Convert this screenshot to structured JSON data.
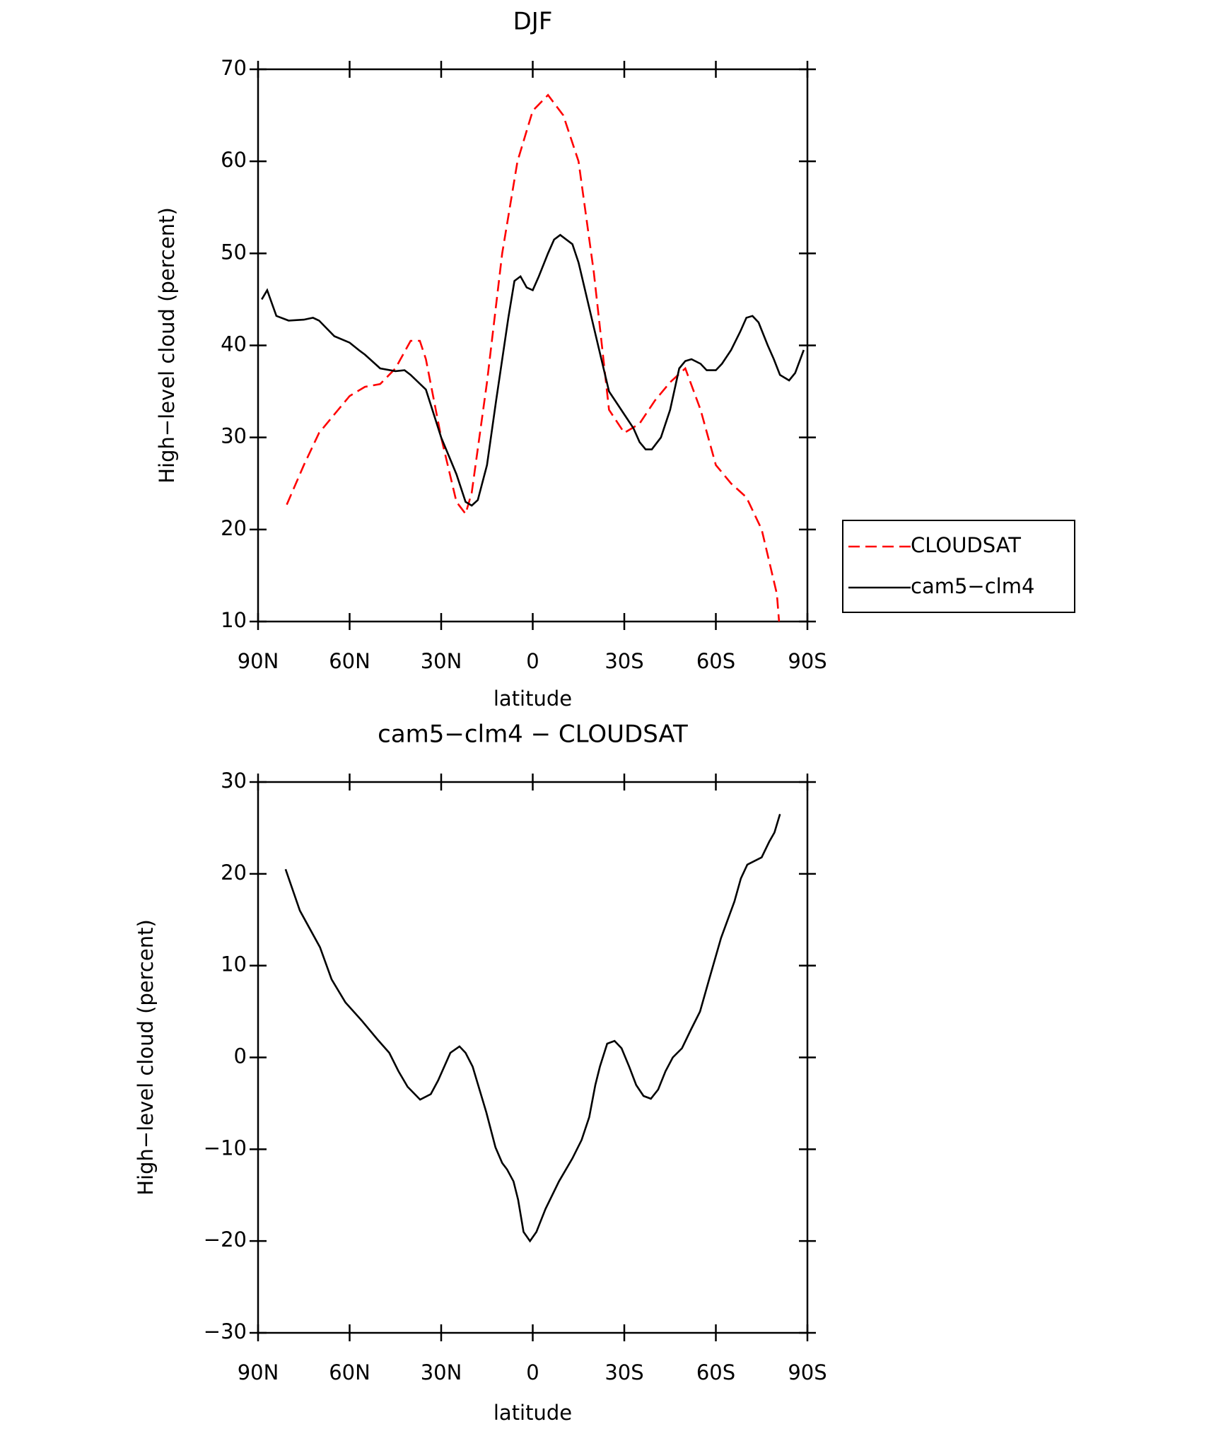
{
  "chart_data": [
    {
      "type": "line",
      "title": "DJF",
      "xlabel": "latitude",
      "ylabel": "High−level cloud (percent)",
      "xlim": [
        90,
        -90
      ],
      "xticks": [
        {
          "value": 90,
          "label": "90N"
        },
        {
          "value": 60,
          "label": "60N"
        },
        {
          "value": 30,
          "label": "30N"
        },
        0,
        {
          "value": -30,
          "label": "30S"
        },
        {
          "value": -60,
          "label": "60S"
        },
        {
          "value": -90,
          "label": "90S"
        }
      ],
      "ylim": [
        10,
        70
      ],
      "yticks": [
        10,
        20,
        30,
        40,
        50,
        60,
        70
      ],
      "legend": "right",
      "series": [
        {
          "name": "CLOUDSAT",
          "color": "#ff0000",
          "line_style": "dashed",
          "x": [
            80.6,
            75,
            70,
            65,
            60,
            55,
            50,
            45,
            40,
            37,
            35,
            30,
            25,
            22,
            20,
            15,
            10,
            5,
            0,
            -5,
            -10,
            -15,
            -20,
            -25,
            -30,
            -35,
            -40,
            -45,
            -50,
            -55,
            -60,
            -65,
            -70,
            -75,
            -80,
            -80.7
          ],
          "values": [
            22.7,
            27,
            30.5,
            32.5,
            34.5,
            35.5,
            35.8,
            37.5,
            40.5,
            40.5,
            38.5,
            30,
            23,
            21.7,
            24,
            36,
            50,
            60,
            65.5,
            67.2,
            65,
            60,
            48,
            33,
            30.5,
            31.5,
            34,
            36,
            37.5,
            33,
            27,
            25,
            23.5,
            20,
            13,
            10
          ]
        },
        {
          "name": "cam5−clm4",
          "color": "#000000",
          "line_style": "solid",
          "x": [
            88.8,
            87,
            84,
            80,
            75,
            72,
            70,
            65,
            60,
            57,
            55,
            50,
            45,
            42,
            40,
            35,
            30,
            25,
            22,
            20,
            18,
            15,
            12,
            8,
            6,
            4,
            2,
            0,
            -2,
            -5,
            -7,
            -9,
            -11,
            -13,
            -15,
            -20,
            -25,
            -28,
            -30,
            -33,
            -35,
            -37,
            -39,
            -42,
            -45,
            -48,
            -50,
            -52,
            -55,
            -57,
            -60,
            -62,
            -65,
            -68,
            -70,
            -72,
            -74,
            -77,
            -79,
            -81,
            -84,
            -86,
            -88.8
          ],
          "values": [
            45,
            46,
            43.2,
            42.7,
            42.8,
            43,
            42.7,
            41,
            40.3,
            39.5,
            39,
            37.5,
            37.2,
            37.3,
            36.8,
            35.2,
            30,
            26,
            23,
            22.6,
            23.2,
            27,
            34,
            43,
            47,
            47.5,
            46.3,
            46,
            47.5,
            50,
            51.5,
            52,
            51.5,
            51,
            49,
            42,
            35,
            33.5,
            32.5,
            31,
            29.5,
            28.7,
            28.7,
            30,
            33,
            37.5,
            38.3,
            38.5,
            38,
            37.3,
            37.3,
            38,
            39.5,
            41.5,
            43,
            43.2,
            42.5,
            40,
            38.5,
            36.8,
            36.2,
            37,
            39.5
          ]
        }
      ]
    },
    {
      "type": "line",
      "title": "cam5−clm4 − CLOUDSAT",
      "xlabel": "latitude",
      "ylabel": "High−level cloud (percent)",
      "xlim": [
        90,
        -90
      ],
      "xticks": [
        {
          "value": 90,
          "label": "90N"
        },
        {
          "value": 60,
          "label": "60N"
        },
        {
          "value": 30,
          "label": "30N"
        },
        0,
        {
          "value": -30,
          "label": "30S"
        },
        {
          "value": -60,
          "label": "60S"
        },
        {
          "value": -90,
          "label": "90S"
        }
      ],
      "ylim": [
        -30,
        30
      ],
      "yticks": [
        {
          "value": -30,
          "label": "−30"
        },
        {
          "value": -20,
          "label": "−20"
        },
        {
          "value": -10,
          "label": "−10"
        },
        0,
        10,
        20,
        30
      ],
      "series": [
        {
          "color": "#000000",
          "line_style": "solid",
          "x": [
            81,
            76.3,
            69.7,
            65.9,
            61.4,
            56,
            51,
            47,
            44,
            41,
            36.9,
            33.4,
            31,
            27,
            24,
            22,
            19.7,
            15.2,
            12.2,
            10,
            8.4,
            6.3,
            4.8,
            3,
            0.9,
            -1.2,
            -4.2,
            -8.6,
            -13,
            -16,
            -18.5,
            -20.5,
            -22,
            -24.4,
            -26.8,
            -29.1,
            -31.6,
            -33.9,
            -36.3,
            -38.7,
            -41.1,
            -43.5,
            -45.9,
            -48.9,
            -51.8,
            -54.8,
            -57.8,
            -61.7,
            -66.1,
            -68.2,
            -70.3,
            -75,
            -77.5,
            -79.2,
            -81
          ],
          "values": [
            20.5,
            16,
            12,
            8.5,
            6,
            4,
            2,
            0.5,
            -1.5,
            -3.2,
            -4.6,
            -4,
            -2.5,
            0.5,
            1.2,
            0.5,
            -1,
            -6,
            -9.8,
            -11.5,
            -12.2,
            -13.5,
            -15.5,
            -19,
            -20,
            -19,
            -16.5,
            -13.5,
            -11,
            -9,
            -6.5,
            -3,
            -1,
            1.5,
            1.8,
            1,
            -1,
            -3,
            -4.2,
            -4.5,
            -3.5,
            -1.5,
            0,
            1,
            3,
            5,
            8.5,
            13,
            17,
            19.5,
            21,
            21.8,
            23.5,
            24.5,
            26.5
          ]
        }
      ]
    }
  ]
}
